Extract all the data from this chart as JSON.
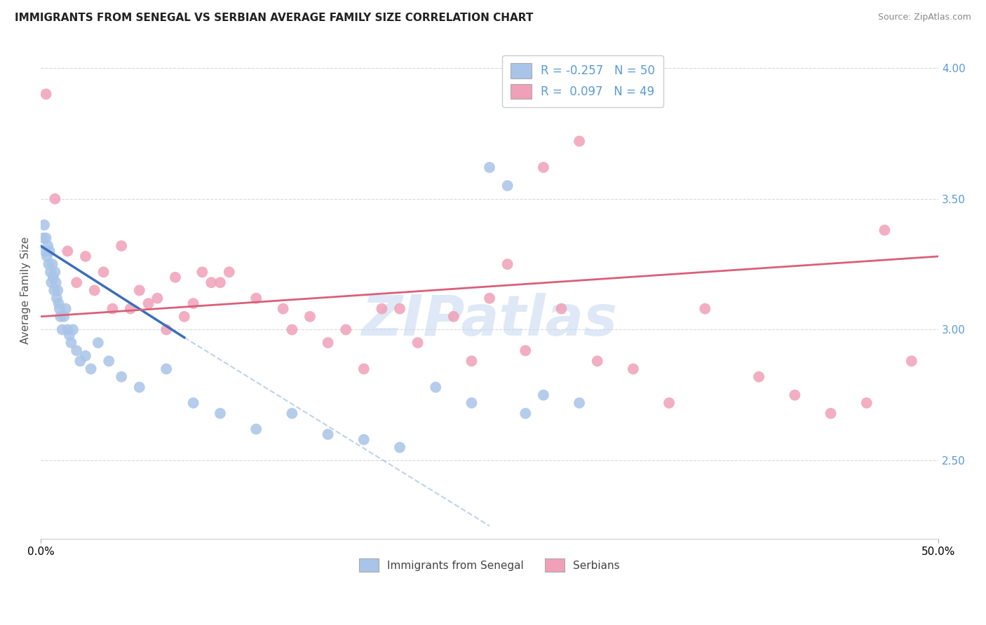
{
  "title": "IMMIGRANTS FROM SENEGAL VS SERBIAN AVERAGE FAMILY SIZE CORRELATION CHART",
  "source": "Source: ZipAtlas.com",
  "ylabel": "Average Family Size",
  "right_yticks": [
    2.5,
    3.0,
    3.5,
    4.0
  ],
  "right_ytick_labels": [
    "2.50",
    "3.00",
    "3.50",
    "4.00"
  ],
  "legend_entries": [
    {
      "label": "R = -0.257   N = 50",
      "color": "#aec6e8"
    },
    {
      "label": "R =  0.097   N = 49",
      "color": "#f4a7b9"
    }
  ],
  "legend_bottom": [
    "Immigrants from Senegal",
    "Serbians"
  ],
  "blue_scatter_x": [
    0.15,
    0.2,
    0.25,
    0.3,
    0.35,
    0.4,
    0.45,
    0.5,
    0.55,
    0.6,
    0.65,
    0.7,
    0.75,
    0.8,
    0.85,
    0.9,
    0.95,
    1.0,
    1.05,
    1.1,
    1.2,
    1.3,
    1.4,
    1.5,
    1.6,
    1.7,
    1.8,
    2.0,
    2.2,
    2.5,
    2.8,
    3.2,
    3.8,
    4.5,
    5.5,
    7.0,
    8.5,
    10.0,
    12.0,
    14.0,
    16.0,
    18.0,
    20.0,
    22.0,
    24.0,
    25.0,
    26.0,
    27.0,
    28.0,
    30.0
  ],
  "blue_scatter_y": [
    3.35,
    3.4,
    3.3,
    3.35,
    3.28,
    3.32,
    3.25,
    3.3,
    3.22,
    3.18,
    3.25,
    3.2,
    3.15,
    3.22,
    3.18,
    3.12,
    3.15,
    3.1,
    3.08,
    3.05,
    3.0,
    3.05,
    3.08,
    3.0,
    2.98,
    2.95,
    3.0,
    2.92,
    2.88,
    2.9,
    2.85,
    2.95,
    2.88,
    2.82,
    2.78,
    2.85,
    2.72,
    2.68,
    2.62,
    2.68,
    2.6,
    2.58,
    2.55,
    2.78,
    2.72,
    3.62,
    3.55,
    2.68,
    2.75,
    2.72
  ],
  "pink_scatter_x": [
    0.3,
    0.8,
    1.5,
    2.5,
    3.5,
    4.5,
    5.5,
    6.5,
    7.5,
    8.5,
    9.5,
    10.5,
    12.0,
    13.5,
    15.0,
    17.0,
    19.0,
    21.0,
    23.0,
    25.0,
    27.0,
    29.0,
    31.0,
    35.0,
    40.0,
    47.0,
    48.5,
    2.0,
    4.0,
    6.0,
    8.0,
    10.0,
    14.0,
    16.0,
    18.0,
    20.0,
    24.0,
    26.0,
    28.0,
    30.0,
    33.0,
    37.0,
    42.0,
    44.0,
    46.0,
    3.0,
    5.0,
    7.0,
    9.0
  ],
  "pink_scatter_y": [
    3.9,
    3.5,
    3.3,
    3.28,
    3.22,
    3.32,
    3.15,
    3.12,
    3.2,
    3.1,
    3.18,
    3.22,
    3.12,
    3.08,
    3.05,
    3.0,
    3.08,
    2.95,
    3.05,
    3.12,
    2.92,
    3.08,
    2.88,
    2.72,
    2.82,
    3.38,
    2.88,
    3.18,
    3.08,
    3.1,
    3.05,
    3.18,
    3.0,
    2.95,
    2.85,
    3.08,
    2.88,
    3.25,
    3.62,
    3.72,
    2.85,
    3.08,
    2.75,
    2.68,
    2.72,
    3.15,
    3.08,
    3.0,
    3.22
  ],
  "blue_line_x0": 0.0,
  "blue_line_y0": 3.32,
  "blue_line_x1": 8.0,
  "blue_line_y1": 2.97,
  "blue_dash_x0": 8.0,
  "blue_dash_y0": 2.97,
  "blue_dash_x1": 25.0,
  "blue_dash_y1": 2.25,
  "pink_line_x0": 0.0,
  "pink_line_y0": 3.05,
  "pink_line_x1": 50.0,
  "pink_line_y1": 3.28,
  "watermark": "ZIPatlas",
  "watermark_color": "#c8daf0",
  "bg_color": "#ffffff",
  "grid_color": "#d8d8d8",
  "blue_line_color": "#3a6fba",
  "pink_line_color": "#d9607a",
  "blue_scatter_color": "#a8c4e8",
  "pink_scatter_color": "#f0a0b8",
  "title_fontsize": 11,
  "source_fontsize": 9,
  "right_axis_color": "#5b9bd5",
  "xlim": [
    0,
    50
  ],
  "ylim": [
    2.2,
    4.1
  ]
}
